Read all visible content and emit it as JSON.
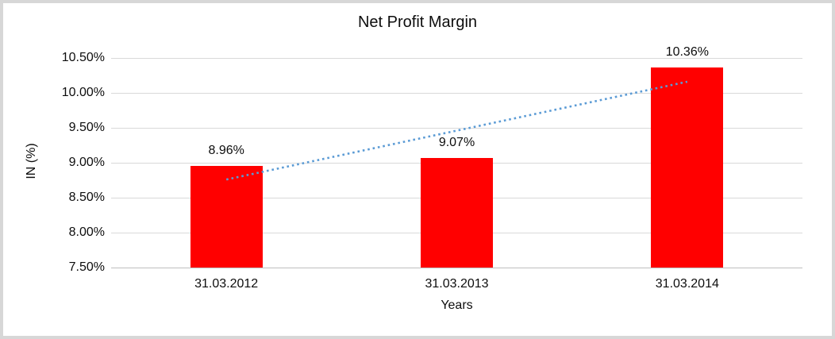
{
  "frame": {
    "border_color": "#d7d7d7"
  },
  "chart_data": {
    "type": "bar",
    "title": "Net Profit Margin",
    "categories": [
      "31.03.2012",
      "31.03.2013",
      "31.03.2014"
    ],
    "values": [
      8.96,
      9.07,
      10.36
    ],
    "data_labels": [
      "8.96%",
      "9.07%",
      "10.36%"
    ],
    "xlabel": "Years",
    "ylabel": "IN (%)",
    "ylim": [
      7.5,
      10.5
    ],
    "ytick_step": 0.5,
    "ytick_labels": [
      "7.50%",
      "8.00%",
      "8.50%",
      "9.00%",
      "9.50%",
      "10.00%",
      "10.50%"
    ],
    "grid": true,
    "legend_position": "none",
    "bar_color": "#ff0000",
    "gridline_color": "#d9d9d9",
    "axis_line_color": "#bfbfbf",
    "text_color": "#0d0d0d",
    "trendline": {
      "type": "linear",
      "style": "dotted",
      "color": "#5b9bd5",
      "start_value": 8.76,
      "end_value": 10.16
    }
  }
}
